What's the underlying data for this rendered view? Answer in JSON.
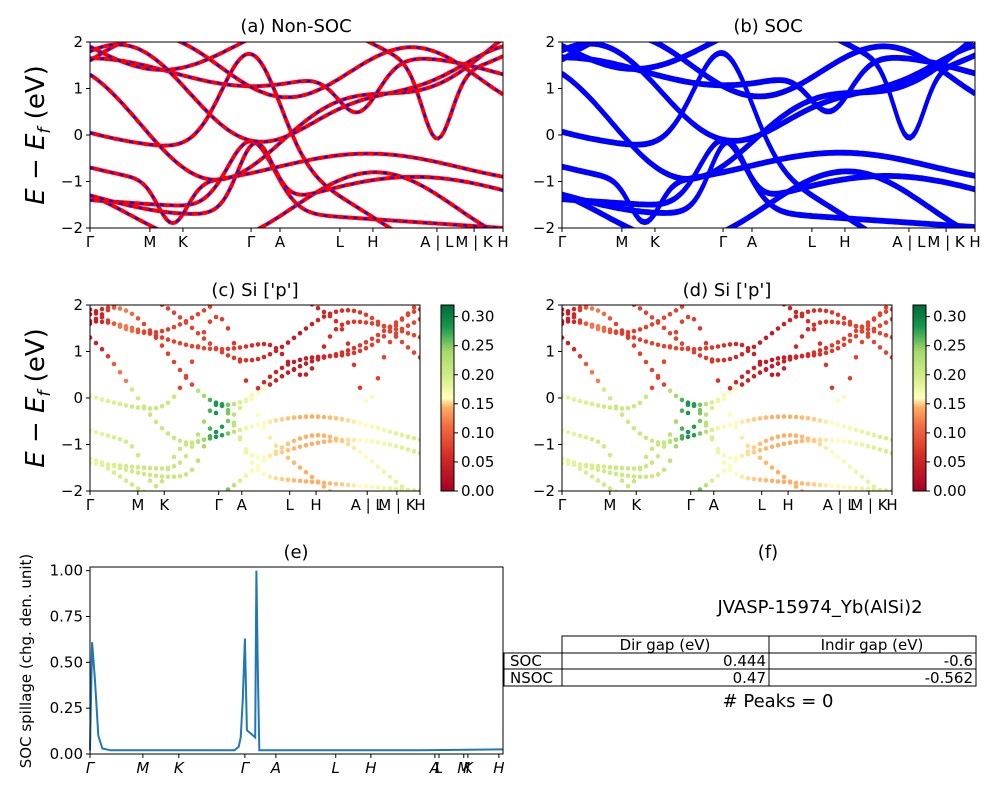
{
  "figure": {
    "ylabel": "E − E_f (eV)",
    "ylabel_main": "E − E",
    "ylabel_sub": "f",
    "ylabel_unit": " (eV)"
  },
  "chart_data": [
    {
      "id": "a",
      "type": "line",
      "title": "(a) Non-SOC",
      "ylim": [
        -2,
        2
      ],
      "yticks": [
        "2",
        "1",
        "0",
        "−1",
        "−2"
      ],
      "ytick_values": [
        2,
        1,
        0,
        -1,
        -2
      ],
      "xticks": [
        "Γ",
        "M",
        "K",
        "Γ",
        "A",
        "L",
        "H",
        "A | L",
        "M | K",
        "H"
      ],
      "xtick_pos": [
        0,
        0.145,
        0.225,
        0.39,
        0.46,
        0.605,
        0.685,
        0.84,
        0.93,
        1.0
      ],
      "colors": {
        "nsoc": "#ff0000",
        "soc": "#0000ff"
      }
    },
    {
      "id": "b",
      "type": "line",
      "title": "(b) SOC",
      "ylim": [
        -2,
        2
      ],
      "yticks": [
        "2",
        "1",
        "0",
        "−1",
        "−2"
      ],
      "ytick_values": [
        2,
        1,
        0,
        -1,
        -2
      ],
      "xticks": [
        "Γ",
        "M",
        "K",
        "Γ",
        "A",
        "L",
        "H",
        "A | L",
        "M | K",
        "H"
      ],
      "xtick_pos": [
        0,
        0.145,
        0.225,
        0.39,
        0.46,
        0.605,
        0.685,
        0.84,
        0.93,
        1.0
      ],
      "colors": {
        "soc": "#0000ff"
      }
    },
    {
      "id": "c",
      "type": "scatter",
      "title": "(c)  Si ['p']",
      "ylim": [
        -2,
        2
      ],
      "yticks": [
        "2",
        "1",
        "0",
        "−1",
        "−2"
      ],
      "ytick_values": [
        2,
        1,
        0,
        -1,
        -2
      ],
      "xticks": [
        "Γ",
        "M",
        "K",
        "Γ",
        "A",
        "L",
        "H",
        "A | L",
        "M | K",
        "H"
      ],
      "xtick_pos": [
        0,
        0.145,
        0.225,
        0.39,
        0.46,
        0.605,
        0.685,
        0.84,
        0.93,
        1.0
      ],
      "colorbar": {
        "min": 0.0,
        "max": 0.32,
        "ticks": [
          "0.00",
          "0.05",
          "0.10",
          "0.15",
          "0.20",
          "0.25",
          "0.30"
        ],
        "tick_values": [
          0,
          0.05,
          0.1,
          0.15,
          0.2,
          0.25,
          0.3
        ],
        "colormap": "RdYlGn"
      }
    },
    {
      "id": "d",
      "type": "scatter",
      "title": "(d) Si ['p']",
      "ylim": [
        -2,
        2
      ],
      "yticks": [
        "2",
        "1",
        "0",
        "−1",
        "−2"
      ],
      "ytick_values": [
        2,
        1,
        0,
        -1,
        -2
      ],
      "xticks": [
        "Γ",
        "M",
        "K",
        "Γ",
        "A",
        "L",
        "H",
        "A | L",
        "M | K",
        "H"
      ],
      "xtick_pos": [
        0,
        0.145,
        0.225,
        0.39,
        0.46,
        0.605,
        0.685,
        0.84,
        0.93,
        1.0
      ],
      "colorbar": {
        "min": 0.0,
        "max": 0.32,
        "ticks": [
          "0.00",
          "0.05",
          "0.10",
          "0.15",
          "0.20",
          "0.25",
          "0.30"
        ],
        "tick_values": [
          0,
          0.05,
          0.1,
          0.15,
          0.2,
          0.25,
          0.3
        ],
        "colormap": "RdYlGn"
      }
    },
    {
      "id": "e",
      "type": "line",
      "title": "(e)",
      "ylabel": "SOC spillage (chg. den. unit)",
      "ylim": [
        0,
        1.02
      ],
      "yticks": [
        "1.00",
        "0.75",
        "0.50",
        "0.25",
        "0.00"
      ],
      "ytick_values": [
        1.0,
        0.75,
        0.5,
        0.25,
        0.0
      ],
      "xticks": [
        "Γ",
        "M",
        "K",
        "Γ",
        "A",
        "L",
        "H",
        "A",
        "L",
        "M",
        "K",
        "H"
      ],
      "xtick_pos": [
        0,
        0.128,
        0.215,
        0.375,
        0.45,
        0.595,
        0.68,
        0.835,
        0.845,
        0.905,
        0.915,
        0.99
      ],
      "color": "#1f77b4",
      "x": [
        0,
        0.005,
        0.012,
        0.02,
        0.03,
        0.05,
        0.1,
        0.2,
        0.3,
        0.35,
        0.36,
        0.365,
        0.37,
        0.375,
        0.38,
        0.385,
        0.39,
        0.4,
        0.403,
        0.406,
        0.41,
        0.415,
        0.42,
        0.45,
        0.6,
        0.8,
        1.0
      ],
      "y": [
        0.02,
        0.61,
        0.4,
        0.1,
        0.03,
        0.02,
        0.02,
        0.02,
        0.02,
        0.02,
        0.04,
        0.09,
        0.3,
        0.63,
        0.13,
        0.12,
        0.11,
        0.09,
        1.0,
        0.5,
        0.02,
        0.02,
        0.02,
        0.02,
        0.02,
        0.02,
        0.025
      ]
    }
  ],
  "panel_f": {
    "title": "(f)",
    "material": "JVASP-15974_Yb(AlSi)2",
    "columns": [
      "Dir gap (eV)",
      "Indir gap (eV)"
    ],
    "rows": [
      {
        "label": "SOC",
        "dir": "0.444",
        "indir": "-0.6"
      },
      {
        "label": "NSOC",
        "dir": "0.47",
        "indir": "-0.562"
      }
    ],
    "peaks": "# Peaks = 0"
  }
}
